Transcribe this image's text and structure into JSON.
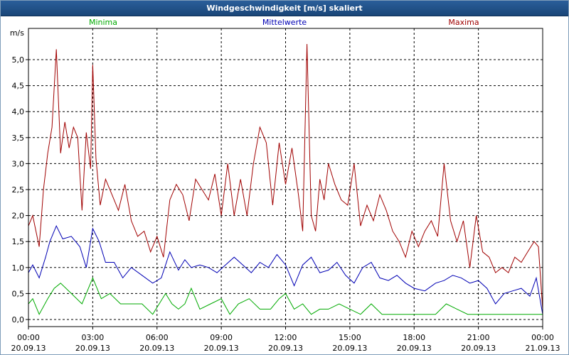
{
  "window": {
    "title": "Windgeschwindigkeit [m/s] skaliert"
  },
  "colors": {
    "min": "#00aa00",
    "mean": "#0000b4",
    "max": "#a00000",
    "grid": "#000000",
    "title_bg": "#2a5e9a"
  },
  "chart_data": {
    "type": "line",
    "title": "Windgeschwindigkeit [m/s] skaliert",
    "ylabel": "m/s",
    "ylim": [
      0,
      5.5
    ],
    "xlim_hours": [
      0,
      24
    ],
    "grid": true,
    "legend_position": "top",
    "y_ticks": [
      "0,0",
      "0,5",
      "1,0",
      "1,5",
      "2,0",
      "2,5",
      "3,0",
      "3,5",
      "4,0",
      "4,5",
      "5,0"
    ],
    "x_ticks": [
      {
        "time": "00:00",
        "date": "20.09.13"
      },
      {
        "time": "03:00",
        "date": "20.09.13"
      },
      {
        "time": "06:00",
        "date": "20.09.13"
      },
      {
        "time": "09:00",
        "date": "20.09.13"
      },
      {
        "time": "12:00",
        "date": "20.09.13"
      },
      {
        "time": "15:00",
        "date": "20.09.13"
      },
      {
        "time": "18:00",
        "date": "20.09.13"
      },
      {
        "time": "21:00",
        "date": "20.09.13"
      },
      {
        "time": "00:00",
        "date": "21.09.13"
      }
    ],
    "series": [
      {
        "name": "Minima",
        "color": "#00aa00",
        "x": [
          0,
          0.2,
          0.5,
          0.9,
          1.2,
          1.5,
          2.0,
          2.5,
          3.0,
          3.4,
          3.8,
          4.3,
          4.8,
          5.3,
          5.8,
          6.1,
          6.4,
          6.7,
          7.0,
          7.3,
          7.6,
          8.0,
          8.5,
          9.0,
          9.4,
          9.8,
          10.3,
          10.8,
          11.3,
          11.7,
          12.0,
          12.4,
          12.8,
          13.2,
          13.6,
          14.0,
          14.5,
          15.0,
          15.5,
          16.0,
          16.5,
          17.0,
          17.5,
          18.0,
          18.5,
          19.0,
          19.5,
          20.0,
          20.5,
          21.0,
          21.5,
          22.0,
          22.5,
          23.0,
          23.5,
          24.0
        ],
        "y": [
          0.3,
          0.4,
          0.1,
          0.4,
          0.6,
          0.7,
          0.5,
          0.3,
          0.8,
          0.4,
          0.5,
          0.3,
          0.3,
          0.3,
          0.1,
          0.3,
          0.5,
          0.3,
          0.2,
          0.3,
          0.6,
          0.2,
          0.3,
          0.4,
          0.1,
          0.3,
          0.4,
          0.2,
          0.2,
          0.4,
          0.5,
          0.2,
          0.3,
          0.1,
          0.2,
          0.2,
          0.3,
          0.2,
          0.1,
          0.3,
          0.1,
          0.1,
          0.1,
          0.1,
          0.1,
          0.1,
          0.3,
          0.2,
          0.1,
          0.1,
          0.1,
          0.1,
          0.1,
          0.1,
          0.1,
          0.1
        ]
      },
      {
        "name": "Mittelwerte",
        "color": "#0000b4",
        "x": [
          0,
          0.2,
          0.5,
          0.8,
          1.0,
          1.3,
          1.6,
          2.0,
          2.4,
          2.7,
          3.0,
          3.3,
          3.6,
          4.0,
          4.4,
          4.8,
          5.3,
          5.8,
          6.2,
          6.6,
          7.0,
          7.3,
          7.6,
          8.0,
          8.4,
          8.8,
          9.2,
          9.6,
          10.0,
          10.4,
          10.8,
          11.2,
          11.6,
          12.0,
          12.4,
          12.8,
          13.2,
          13.6,
          14.0,
          14.4,
          14.8,
          15.2,
          15.6,
          16.0,
          16.4,
          16.8,
          17.2,
          17.6,
          18.0,
          18.5,
          19.0,
          19.4,
          19.8,
          20.2,
          20.6,
          21.0,
          21.4,
          21.8,
          22.2,
          22.6,
          23.0,
          23.4,
          23.7,
          24.0
        ],
        "y": [
          0.9,
          1.05,
          0.8,
          1.2,
          1.5,
          1.8,
          1.55,
          1.6,
          1.4,
          1.0,
          1.75,
          1.5,
          1.1,
          1.1,
          0.8,
          1.0,
          0.85,
          0.7,
          0.8,
          1.3,
          0.95,
          1.15,
          1.0,
          1.05,
          1.0,
          0.9,
          1.05,
          1.2,
          1.05,
          0.9,
          1.1,
          1.0,
          1.25,
          1.05,
          0.65,
          1.05,
          1.2,
          0.9,
          0.95,
          1.1,
          0.85,
          0.7,
          1.0,
          1.1,
          0.8,
          0.75,
          0.85,
          0.7,
          0.6,
          0.55,
          0.7,
          0.75,
          0.85,
          0.8,
          0.7,
          0.75,
          0.6,
          0.3,
          0.5,
          0.55,
          0.6,
          0.45,
          0.8,
          0.1
        ]
      },
      {
        "name": "Maxima",
        "color": "#a00000",
        "x": [
          0,
          0.2,
          0.5,
          0.7,
          0.9,
          1.1,
          1.3,
          1.5,
          1.7,
          1.9,
          2.1,
          2.3,
          2.5,
          2.7,
          2.9,
          3.0,
          3.15,
          3.35,
          3.6,
          3.9,
          4.2,
          4.5,
          4.8,
          5.1,
          5.4,
          5.7,
          6.0,
          6.3,
          6.6,
          6.9,
          7.2,
          7.5,
          7.8,
          8.1,
          8.4,
          8.7,
          9.0,
          9.3,
          9.6,
          9.9,
          10.2,
          10.5,
          10.8,
          11.1,
          11.4,
          11.7,
          12.0,
          12.3,
          12.6,
          12.8,
          13.0,
          13.2,
          13.4,
          13.6,
          13.8,
          14.0,
          14.3,
          14.6,
          14.9,
          15.2,
          15.5,
          15.8,
          16.1,
          16.4,
          16.7,
          17.0,
          17.3,
          17.6,
          17.9,
          18.2,
          18.5,
          18.8,
          19.1,
          19.4,
          19.7,
          20.0,
          20.3,
          20.6,
          20.9,
          21.2,
          21.5,
          21.8,
          22.1,
          22.4,
          22.7,
          23.0,
          23.3,
          23.6,
          23.8,
          24.0
        ],
        "y": [
          1.8,
          2.0,
          1.4,
          2.5,
          3.2,
          3.7,
          5.2,
          3.2,
          3.8,
          3.3,
          3.7,
          3.5,
          2.1,
          3.6,
          2.9,
          4.9,
          3.1,
          2.2,
          2.7,
          2.4,
          2.1,
          2.6,
          1.9,
          1.6,
          1.7,
          1.3,
          1.6,
          1.2,
          2.3,
          2.6,
          2.4,
          1.9,
          2.7,
          2.5,
          2.3,
          2.8,
          2.0,
          3.0,
          2.0,
          2.7,
          2.0,
          3.0,
          3.7,
          3.4,
          2.2,
          3.4,
          2.6,
          3.3,
          2.4,
          1.7,
          5.3,
          2.0,
          1.7,
          2.7,
          2.3,
          3.0,
          2.6,
          2.3,
          2.2,
          3.0,
          1.8,
          2.2,
          1.9,
          2.4,
          2.1,
          1.7,
          1.5,
          1.2,
          1.7,
          1.4,
          1.7,
          1.9,
          1.6,
          3.0,
          1.9,
          1.5,
          1.9,
          1.0,
          2.0,
          1.3,
          1.2,
          0.9,
          1.0,
          0.9,
          1.2,
          1.1,
          1.3,
          1.5,
          1.4,
          0.2
        ]
      }
    ]
  }
}
